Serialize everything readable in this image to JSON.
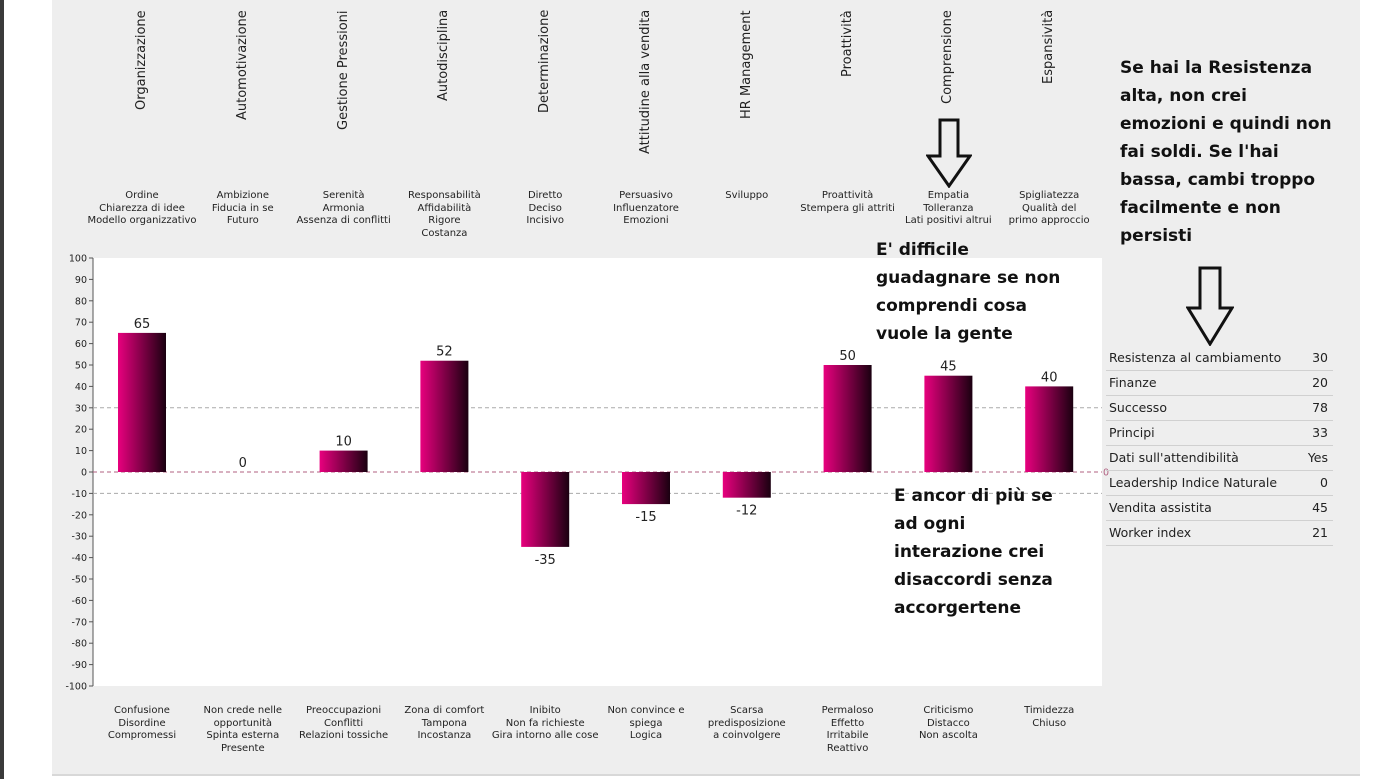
{
  "chart_data": {
    "type": "bar",
    "categories": [
      "Organizzazione",
      "Automotivazione",
      "Gestione Pressioni",
      "Autodisciplina",
      "Determinazione",
      "Attitudine alla vendita",
      "HR Management",
      "Proattività",
      "Comprensione",
      "Espansività"
    ],
    "values": [
      65,
      0,
      10,
      52,
      -35,
      -15,
      -12,
      50,
      45,
      40
    ],
    "value_labels": [
      "65",
      "0",
      "10",
      "52",
      "-35",
      "-15",
      "-12",
      "50",
      "45",
      "40"
    ],
    "positive_descriptions": [
      [
        "Ordine",
        "Chiarezza di idee",
        "Modello organizzativo"
      ],
      [
        "Ambizione",
        "Fiducia in se",
        "Futuro"
      ],
      [
        "Serenità",
        "Armonia",
        "Assenza di conflitti"
      ],
      [
        "Responsabilità",
        "Affidabilità",
        "Rigore",
        "Costanza"
      ],
      [
        "Diretto",
        "Deciso",
        "Incisivo"
      ],
      [
        "Persuasivo",
        "Influenzatore",
        "Emozioni"
      ],
      [
        "Sviluppo"
      ],
      [
        "Proattività",
        "Stempera gli attriti"
      ],
      [
        "Empatia",
        "Tolleranza",
        "Lati positivi altrui"
      ],
      [
        "Spigliatezza",
        "Qualità del",
        "primo approccio"
      ]
    ],
    "negative_descriptions": [
      [
        "Confusione",
        "Disordine",
        "Compromessi"
      ],
      [
        "Non crede nelle",
        "opportunità",
        "Spinta esterna",
        "Presente"
      ],
      [
        "Preoccupazioni",
        "Conflitti",
        "Relazioni tossiche"
      ],
      [
        "Zona di comfort",
        "Tampona",
        "Incostanza"
      ],
      [
        "Inibito",
        "Non fa richieste",
        "Gira intorno alle cose"
      ],
      [
        "Non convince e",
        "spiega",
        "Logica"
      ],
      [
        "Scarsa",
        "predisposizione",
        "a coinvolgere"
      ],
      [
        "Permaloso",
        "Effetto",
        "Irritabile",
        "Reattivo"
      ],
      [
        "Criticismo",
        "Distacco",
        "Non ascolta"
      ],
      [
        "Timidezza",
        "Chiuso"
      ]
    ],
    "yticks": [
      "100",
      "90",
      "80",
      "70",
      "60",
      "50",
      "40",
      "30",
      "20",
      "10",
      "0",
      "-10",
      "-20",
      "-30",
      "-40",
      "-50",
      "-60",
      "-70",
      "-80",
      "-90",
      "-100"
    ],
    "ylim": [
      -100,
      100
    ],
    "reference_lines": [
      30,
      -10
    ],
    "zero_label": "0",
    "bar_gradient": [
      "#e8007e",
      "#1a0010"
    ],
    "reference_color": "#aaaaaa",
    "zero_color": "#b06080"
  },
  "annotations": {
    "top_right": [
      "Se hai la Resistenza",
      "alta, non crei",
      "emozioni e quindi non",
      "fai soldi. Se l'hai",
      "bassa, cambi troppo",
      "facilmente e non",
      "persisti"
    ],
    "middle": [
      "E' difficile",
      "guadagnare se non",
      "comprendi cosa",
      "vuole la gente"
    ],
    "lower": [
      "E ancor di più se",
      "ad ogni",
      "interazione crei",
      "disaccordi senza",
      "accorgertene"
    ]
  },
  "table": [
    {
      "label": "Resistenza al cambiamento",
      "value": "30"
    },
    {
      "label": "Finanze",
      "value": "20"
    },
    {
      "label": "Successo",
      "value": "78"
    },
    {
      "label": "Principi",
      "value": "33"
    },
    {
      "label": "Dati sull'attendibilità",
      "value": "Yes"
    },
    {
      "label": "Leadership Indice Naturale",
      "value": "0"
    },
    {
      "label": "Vendita assistita",
      "value": "45"
    },
    {
      "label": "Worker index",
      "value": "21"
    }
  ]
}
